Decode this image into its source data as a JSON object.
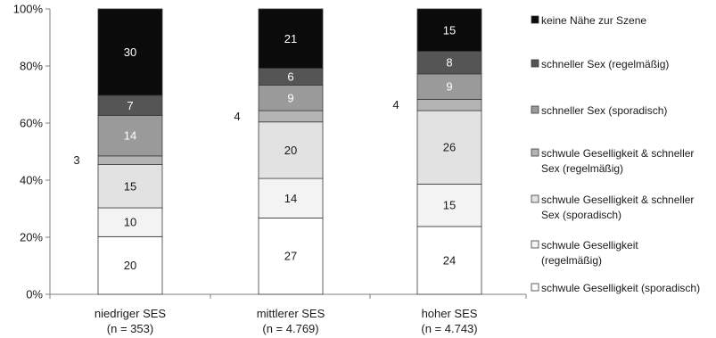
{
  "chart_data": {
    "type": "bar",
    "stacked": true,
    "normalized": true,
    "title": "",
    "xlabel": "",
    "ylabel": "",
    "ylim": [
      0,
      100
    ],
    "y_ticks": [
      "0%",
      "20%",
      "40%",
      "60%",
      "80%",
      "100%"
    ],
    "grid": false,
    "legend_position": "right",
    "categories": [
      {
        "label": "niedriger SES",
        "sublabel": "(n = 353)"
      },
      {
        "label": "mittlerer SES",
        "sublabel": "(n = 4.769)"
      },
      {
        "label": "hoher SES",
        "sublabel": "(n = 4.743)"
      }
    ],
    "series": [
      {
        "name": "schwule Geselligkeit (sporadisch)",
        "color": "#ffffff",
        "label_color": "#1a1a1a",
        "values": [
          20,
          27,
          24
        ],
        "labels": [
          "20",
          "27",
          "24"
        ]
      },
      {
        "name": "schwule Geselligkeit (regelmäßig)",
        "color": "#f3f3f3",
        "label_color": "#1a1a1a",
        "values": [
          10,
          14,
          15
        ],
        "labels": [
          "10",
          "14",
          "15"
        ]
      },
      {
        "name": "schwule Geselligkeit & schneller Sex (sporadisch)",
        "color": "#e2e2e2",
        "label_color": "#1a1a1a",
        "values": [
          15,
          20,
          26
        ],
        "labels": [
          "15",
          "20",
          "26"
        ]
      },
      {
        "name": "schwule Geselligkeit & schneller Sex (regelmäßig)",
        "color": "#b4b4b4",
        "label_color": "#1a1a1a",
        "values": [
          3,
          4,
          4
        ],
        "labels": [
          "3",
          "4",
          "4"
        ],
        "label_outside": true
      },
      {
        "name": "schneller Sex (sporadisch)",
        "color": "#9a9a9a",
        "label_color": "#ffffff",
        "values": [
          14,
          9,
          9
        ],
        "labels": [
          "14",
          "9",
          "9"
        ]
      },
      {
        "name": "schneller Sex (regelmäßig)",
        "color": "#555555",
        "label_color": "#ffffff",
        "values": [
          7,
          6,
          8
        ],
        "labels": [
          "7",
          "6",
          "8"
        ]
      },
      {
        "name": "keine Nähe zur Szene",
        "color": "#0b0b0b",
        "label_color": "#ffffff",
        "values": [
          30,
          21,
          15
        ],
        "labels": [
          "30",
          "21",
          "15"
        ]
      }
    ],
    "legend": [
      {
        "lines": [
          "keine Nähe zur Szene"
        ],
        "color": "#0b0b0b"
      },
      {
        "lines": [
          "schneller Sex (regelmäßig)"
        ],
        "color": "#555555"
      },
      {
        "lines": [
          " schneller Sex (sporadisch)"
        ],
        "color": "#9a9a9a"
      },
      {
        "lines": [
          "schwule Geselligkeit & schneller",
          "Sex (regelmäßig)"
        ],
        "color": "#b4b4b4"
      },
      {
        "lines": [
          "schwule Geselligkeit & schneller",
          "Sex (sporadisch)"
        ],
        "color": "#e2e2e2"
      },
      {
        "lines": [
          " schwule Geselligkeit",
          " (regelmäßig)"
        ],
        "color": "#f3f3f3"
      },
      {
        "lines": [
          "schwule Geselligkeit (sporadisch)"
        ],
        "color": "#ffffff"
      }
    ]
  }
}
